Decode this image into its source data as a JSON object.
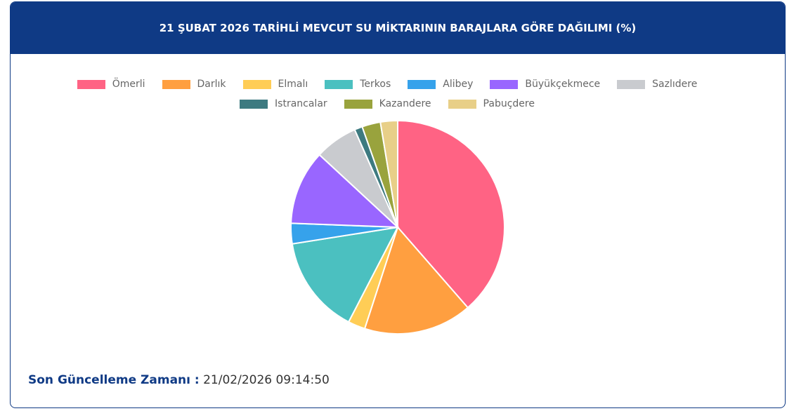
{
  "chart_data": {
    "type": "pie",
    "title": "21 ŞUBAT 2026 TARİHLİ MEVCUT SU MİKTARININ BARAJLARA GÖRE DAĞILIMI (%)",
    "categories": [
      "Ömerli",
      "Darlık",
      "Elmalı",
      "Terkos",
      "Alibey",
      "Büyükçekmece",
      "Sazlıdere",
      "Istrancalar",
      "Kazandere",
      "Pabuçdere"
    ],
    "values": [
      38.6,
      16.4,
      2.6,
      14.9,
      3.1,
      11.3,
      6.5,
      1.2,
      2.8,
      2.6
    ],
    "colors": [
      "#ff6384",
      "#ff9f40",
      "#ffcd56",
      "#4bc0c0",
      "#36a2eb",
      "#9966ff",
      "#c9cbcf",
      "#3d7a80",
      "#99a33d",
      "#e8cf88"
    ],
    "legend": "top"
  },
  "footer": {
    "label": "Son Güncelleme Zamanı :",
    "value": "21/02/2026 09:14:50"
  }
}
